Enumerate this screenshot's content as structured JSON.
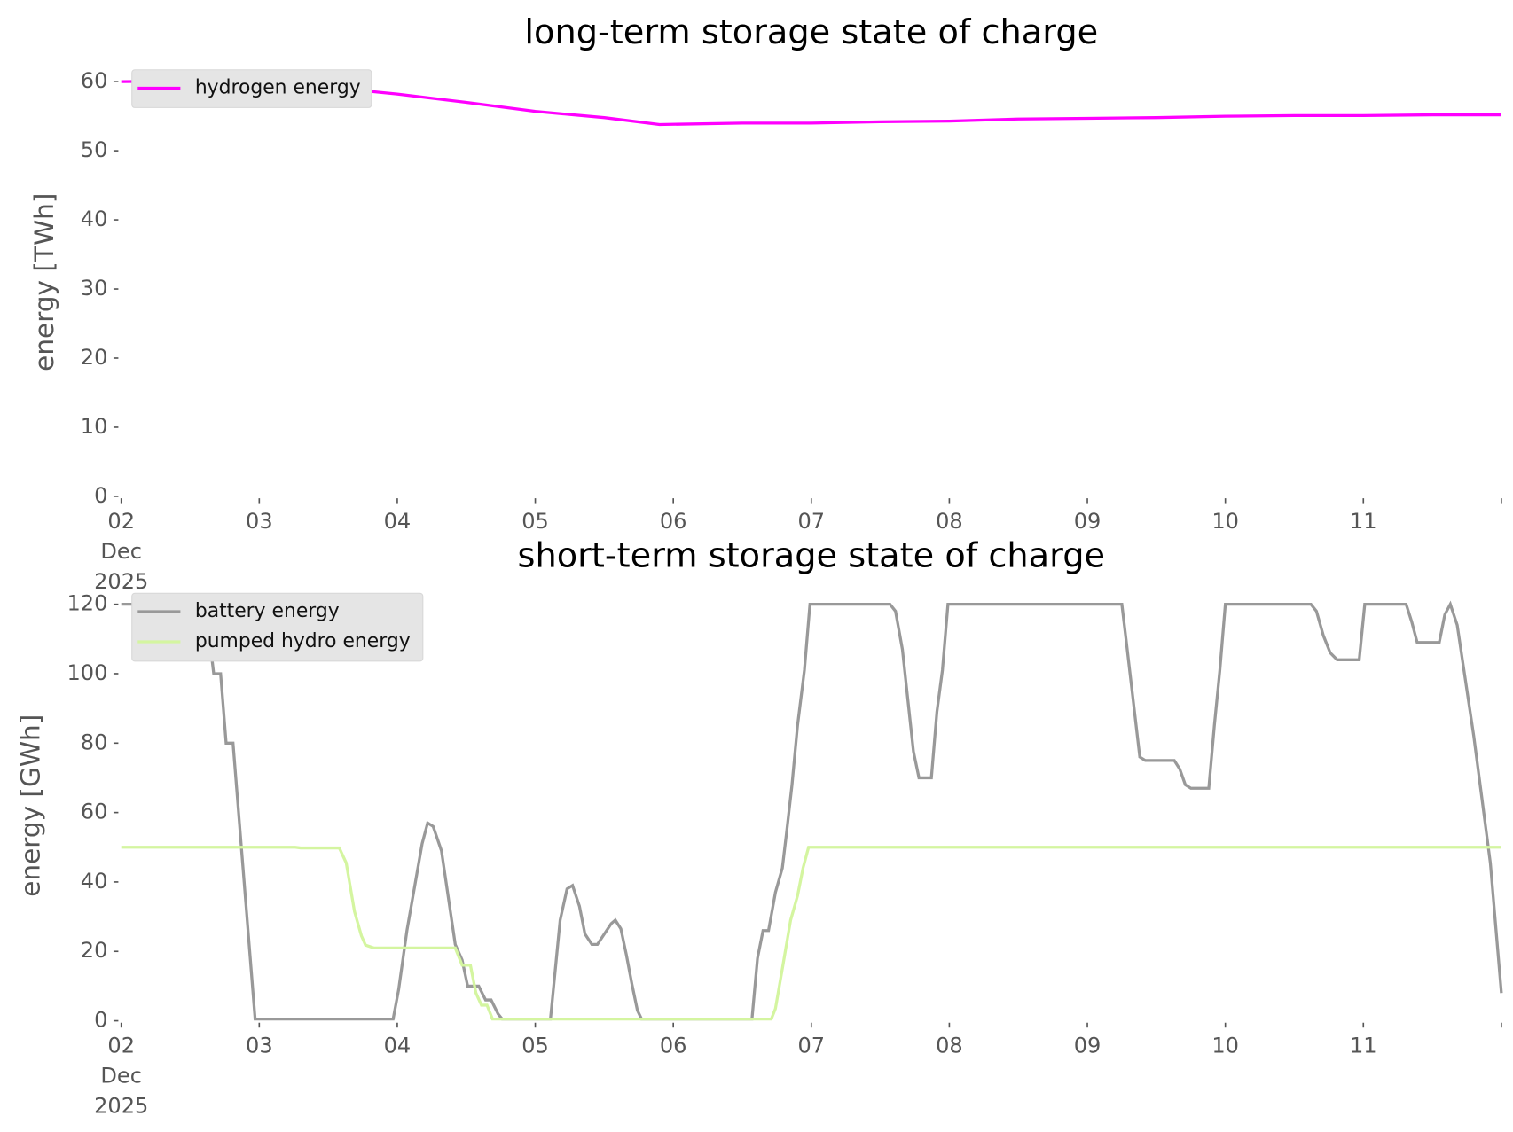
{
  "chart_data": [
    {
      "type": "line",
      "title": "long-term storage state of charge",
      "ylabel": "energy [TWh]",
      "xlim": [
        2,
        12
      ],
      "xticks": [
        {
          "value": 2,
          "label": "02\nDec\n2025"
        },
        {
          "value": 3,
          "label": "03"
        },
        {
          "value": 4,
          "label": "04"
        },
        {
          "value": 5,
          "label": "05"
        },
        {
          "value": 6,
          "label": "06"
        },
        {
          "value": 7,
          "label": "07"
        },
        {
          "value": 8,
          "label": "08"
        },
        {
          "value": 9,
          "label": "09"
        },
        {
          "value": 10,
          "label": "10"
        },
        {
          "value": 11,
          "label": "11"
        }
      ],
      "ylim": [
        0,
        62
      ],
      "yticks": [
        0,
        10,
        20,
        30,
        40,
        50,
        60
      ],
      "legend": "upper left",
      "series": [
        {
          "name": "hydrogen energy",
          "color": "#ff00ff",
          "x": [
            2,
            2.5,
            3,
            3.5,
            4,
            4.5,
            5,
            5.5,
            5.9,
            6.5,
            7,
            7.5,
            8,
            8.5,
            9,
            9.5,
            10,
            10.5,
            11,
            11.5,
            12
          ],
          "values": [
            60,
            60.1,
            59.8,
            59.2,
            58.2,
            57,
            55.7,
            54.8,
            53.8,
            54,
            54,
            54.2,
            54.3,
            54.6,
            54.7,
            54.8,
            55,
            55.1,
            55.1,
            55.2,
            55.2
          ]
        }
      ]
    },
    {
      "type": "line",
      "title": "short-term storage state of charge",
      "ylabel": "energy [GWh]",
      "xlim": [
        2,
        12
      ],
      "xticks": [
        {
          "value": 2,
          "label": "02\nDec\n2025"
        },
        {
          "value": 3,
          "label": "03"
        },
        {
          "value": 4,
          "label": "04"
        },
        {
          "value": 5,
          "label": "05"
        },
        {
          "value": 6,
          "label": "06"
        },
        {
          "value": 7,
          "label": "07"
        },
        {
          "value": 8,
          "label": "08"
        },
        {
          "value": 9,
          "label": "09"
        },
        {
          "value": 10,
          "label": "10"
        },
        {
          "value": 11,
          "label": "11"
        }
      ],
      "ylim": [
        0,
        124
      ],
      "yticks": [
        0,
        20,
        40,
        60,
        80,
        100,
        120
      ],
      "legend": "upper left",
      "series": [
        {
          "name": "battery energy",
          "color": "#999999",
          "x": [
            2,
            2.61,
            2.67,
            2.72,
            2.76,
            2.81,
            2.97,
            3.97,
            4.01,
            4.07,
            4.18,
            4.22,
            4.26,
            4.32,
            4.42,
            4.47,
            4.51,
            4.59,
            4.64,
            4.68,
            4.73,
            4.76,
            5.11,
            5.18,
            5.23,
            5.27,
            5.32,
            5.36,
            5.41,
            5.45,
            5.55,
            5.58,
            5.62,
            5.66,
            5.7,
            5.74,
            5.77,
            6.57,
            6.61,
            6.65,
            6.69,
            6.74,
            6.79,
            6.82,
            6.86,
            6.9,
            6.95,
            6.99,
            7.57,
            7.61,
            7.66,
            7.74,
            7.78,
            7.87,
            7.91,
            7.95,
            7.99,
            9.25,
            9.28,
            9.38,
            9.42,
            9.63,
            9.67,
            9.71,
            9.75,
            9.88,
            9.92,
            9.96,
            10,
            10.62,
            10.66,
            10.71,
            10.76,
            10.81,
            10.97,
            11.01,
            11.31,
            11.35,
            11.39,
            11.55,
            11.59,
            11.63,
            11.68,
            11.8,
            11.92,
            12
          ],
          "values": [
            120,
            120,
            100,
            100,
            80,
            80,
            0.5,
            0.5,
            9,
            26,
            51,
            57,
            56,
            49,
            22,
            17.5,
            10,
            10,
            6,
            6,
            2,
            0.5,
            0.5,
            29,
            38,
            39,
            33,
            25,
            22,
            22,
            28,
            29,
            26.5,
            19,
            10.6,
            3,
            0.5,
            0.5,
            18,
            26,
            26,
            37,
            44,
            54,
            68,
            85,
            101,
            120,
            120,
            118,
            107,
            77.6,
            70,
            70,
            89,
            101,
            120,
            120,
            110,
            76,
            75,
            75,
            72.5,
            68,
            67,
            67,
            85,
            101,
            120,
            120,
            118,
            111,
            106,
            104,
            104,
            120,
            120,
            115,
            109,
            109,
            117,
            120,
            114,
            82,
            45.5,
            8
          ]
        },
        {
          "name": "pumped hydro energy",
          "color": "#d4f5a0",
          "x": [
            2,
            3.26,
            3.3,
            3.58,
            3.63,
            3.69,
            3.74,
            3.77,
            3.83,
            4.42,
            4.47,
            4.53,
            4.57,
            4.61,
            4.65,
            4.69,
            6.71,
            6.74,
            6.79,
            6.85,
            6.9,
            6.94,
            6.98,
            12
          ],
          "values": [
            50,
            50,
            49.8,
            49.8,
            45.5,
            31.5,
            24.5,
            21.8,
            21,
            21,
            16,
            16,
            8,
            4.5,
            4.5,
            0.5,
            0.5,
            3.5,
            15,
            29,
            36,
            44,
            50,
            50
          ]
        }
      ]
    }
  ]
}
